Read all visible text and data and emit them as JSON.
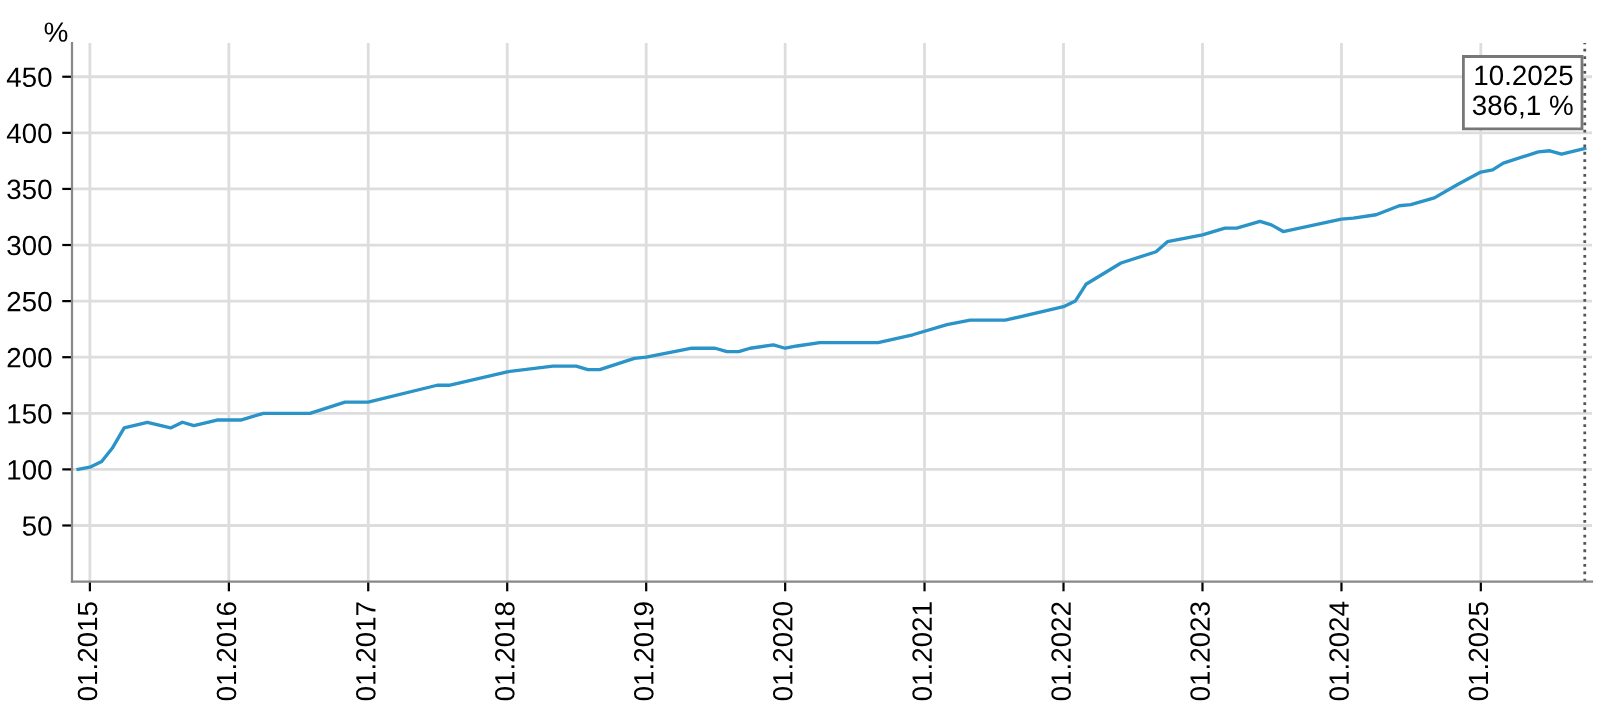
{
  "chart_data": {
    "type": "line",
    "ylabel": "%",
    "x": [
      "2014-12",
      "2015-01",
      "2015-02",
      "2015-03",
      "2015-04",
      "2015-06",
      "2015-08",
      "2015-09",
      "2015-10",
      "2015-12",
      "2016-02",
      "2016-04",
      "2016-08",
      "2016-11",
      "2017-01",
      "2017-07",
      "2017-08",
      "2018-01",
      "2018-05",
      "2018-07",
      "2018-08",
      "2018-09",
      "2018-12",
      "2019-01",
      "2019-05",
      "2019-07",
      "2019-08",
      "2019-09",
      "2019-10",
      "2019-12",
      "2020-01",
      "2020-02",
      "2020-04",
      "2020-09",
      "2020-12",
      "2021-03",
      "2021-05",
      "2021-08",
      "2022-01",
      "2022-02",
      "2022-03",
      "2022-06",
      "2022-09",
      "2022-10",
      "2023-01",
      "2023-03",
      "2023-04",
      "2023-06",
      "2023-07",
      "2023-08",
      "2024-01",
      "2024-02",
      "2024-04",
      "2024-06",
      "2024-07",
      "2024-09",
      "2024-11",
      "2025-01",
      "2025-02",
      "2025-03",
      "2025-06",
      "2025-07",
      "2025-08",
      "2025-10"
    ],
    "series": [
      {
        "color": "#2a93c8",
        "values": [
          100,
          102,
          107,
          119,
          137,
          142,
          137,
          142,
          139,
          144,
          144,
          150,
          150,
          160,
          160,
          175,
          175,
          187,
          192,
          192,
          189,
          189,
          199,
          200,
          208,
          208,
          205,
          205,
          208,
          211,
          208,
          210,
          213,
          213,
          220,
          229,
          233,
          233,
          245,
          250,
          265,
          284,
          294,
          303,
          309,
          315,
          315,
          321,
          318,
          312,
          323,
          324,
          327,
          335,
          336,
          342,
          354,
          365,
          367,
          373,
          383,
          384,
          381,
          386.1
        ]
      }
    ],
    "xlim": [
      "2014-11-15",
      "2025-10-20"
    ],
    "xticks": [
      {
        "value": "2015-01",
        "label": "01.2015"
      },
      {
        "value": "2016-01",
        "label": "01.2016"
      },
      {
        "value": "2017-01",
        "label": "01.2017"
      },
      {
        "value": "2018-01",
        "label": "01.2018"
      },
      {
        "value": "2019-01",
        "label": "01.2019"
      },
      {
        "value": "2020-01",
        "label": "01.2020"
      },
      {
        "value": "2021-01",
        "label": "01.2021"
      },
      {
        "value": "2022-01",
        "label": "01.2022"
      },
      {
        "value": "2023-01",
        "label": "01.2023"
      },
      {
        "value": "2024-01",
        "label": "01.2024"
      },
      {
        "value": "2025-01",
        "label": "01.2025"
      }
    ],
    "ylim": [
      0,
      480
    ],
    "yticks": [
      50,
      100,
      150,
      200,
      250,
      300,
      350,
      400,
      450
    ],
    "grid": true,
    "legend": false,
    "marker": "none",
    "line_style": "solid",
    "ref_lines": [
      {
        "axis": "x",
        "value": "2025-10",
        "line_style": "dotted",
        "color": "#555555"
      }
    ],
    "annotations": [
      {
        "text": "10.2025\n386,1 %",
        "x": "2025-10",
        "y": 386.1
      }
    ]
  }
}
